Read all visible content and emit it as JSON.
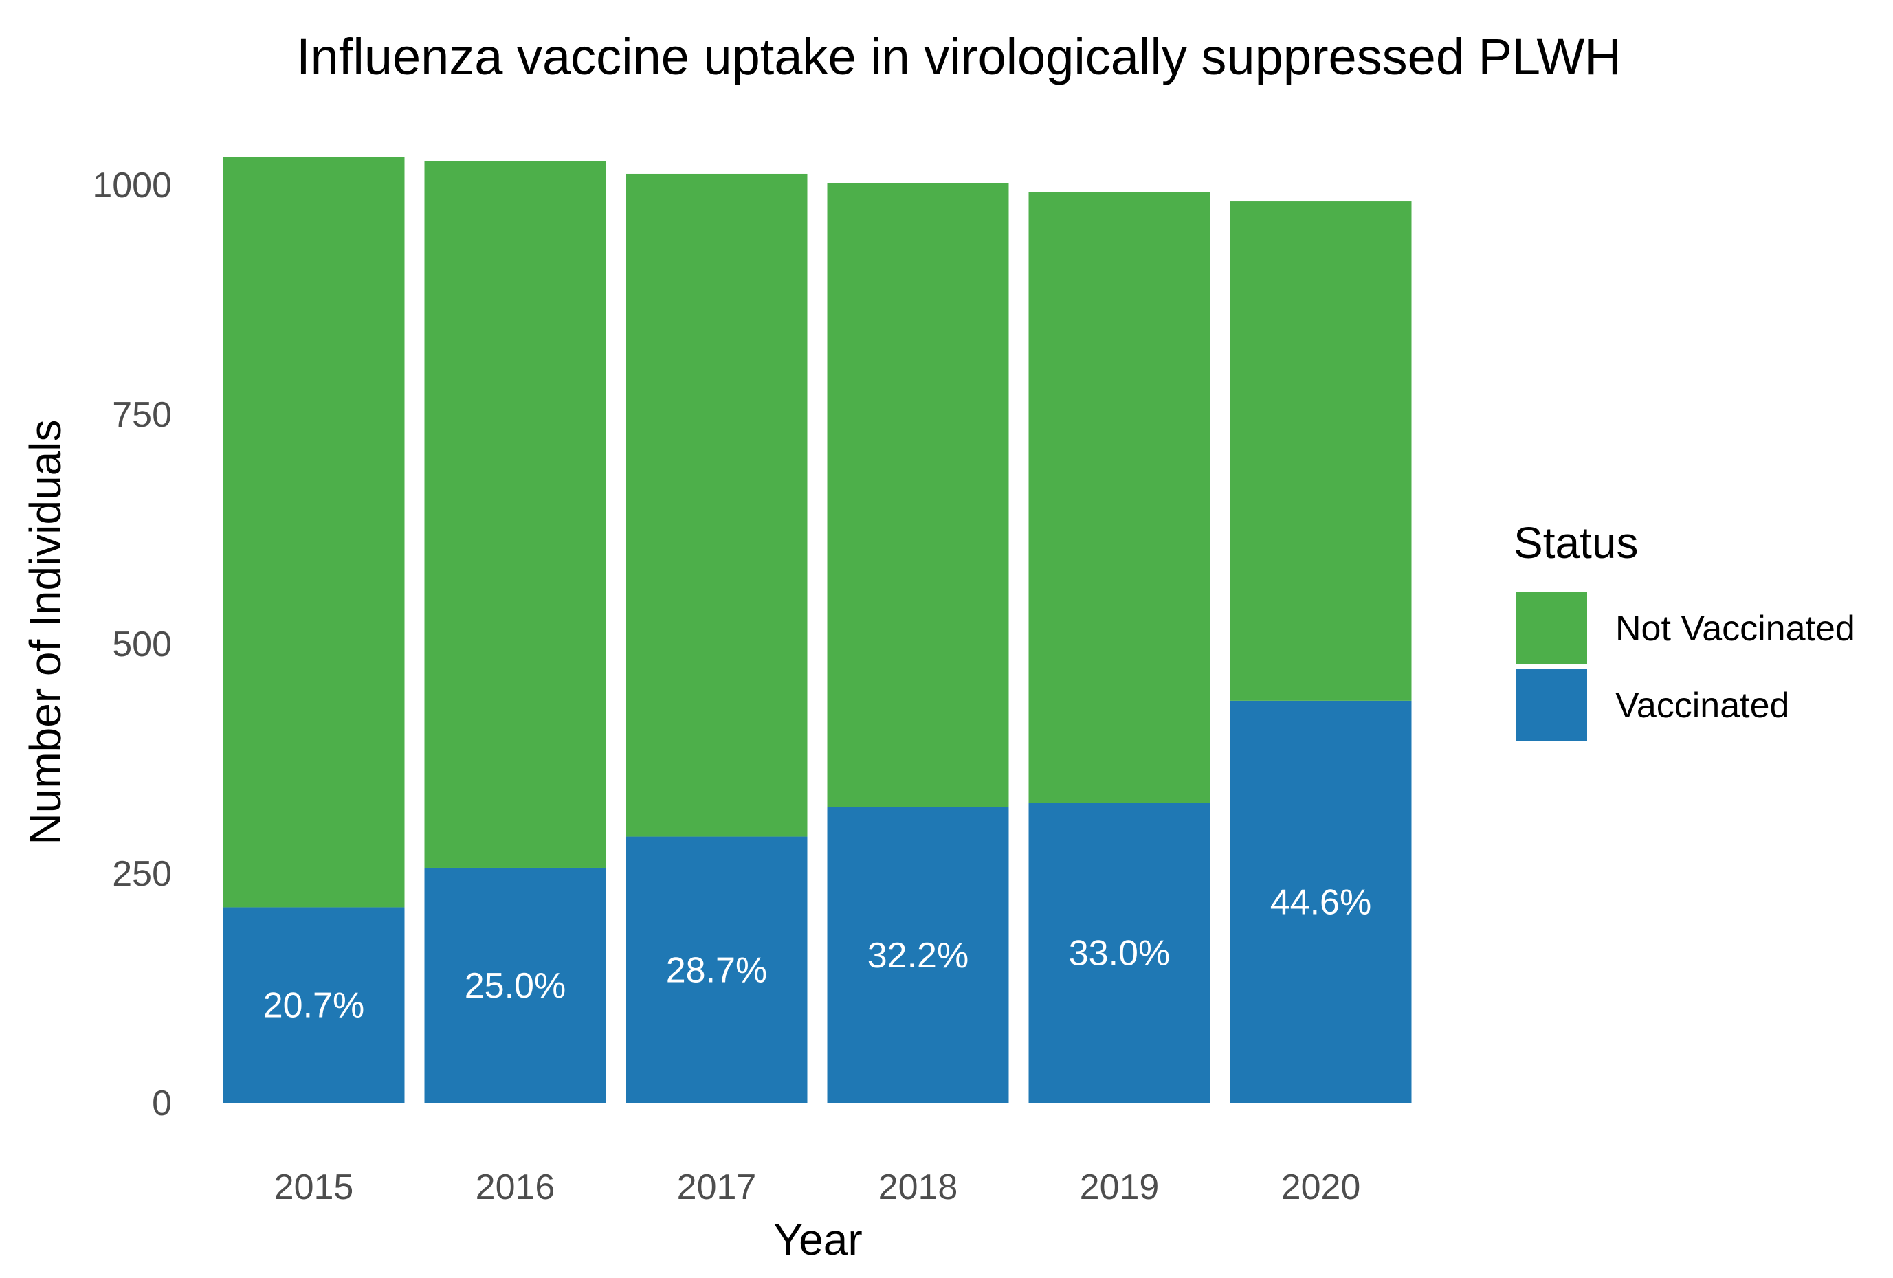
{
  "chart_data": {
    "type": "bar",
    "stacked": true,
    "title": "Influenza vaccine uptake in virologically suppressed PLWH",
    "xlabel": "Year",
    "ylabel": "Number of Individuals",
    "categories": [
      "2015",
      "2016",
      "2017",
      "2018",
      "2019",
      "2020"
    ],
    "series": [
      {
        "name": "Vaccinated",
        "color": "#1f78b4",
        "values": [
          213,
          256,
          290,
          322,
          327,
          438
        ]
      },
      {
        "name": "Not Vaccinated",
        "color": "#4daf4a",
        "values": [
          817,
          770,
          722,
          680,
          665,
          544
        ]
      }
    ],
    "data_labels": [
      "20.7%",
      "25.0%",
      "28.7%",
      "32.2%",
      "33.0%",
      "44.6%"
    ],
    "ylim": [
      0,
      1030
    ],
    "yticks": [
      0,
      250,
      500,
      750,
      1000
    ],
    "grid": false,
    "legend": {
      "title": "Status",
      "position": "right",
      "entries": [
        {
          "label": "Not Vaccinated",
          "color": "#4daf4a"
        },
        {
          "label": "Vaccinated",
          "color": "#1f78b4"
        }
      ]
    }
  }
}
